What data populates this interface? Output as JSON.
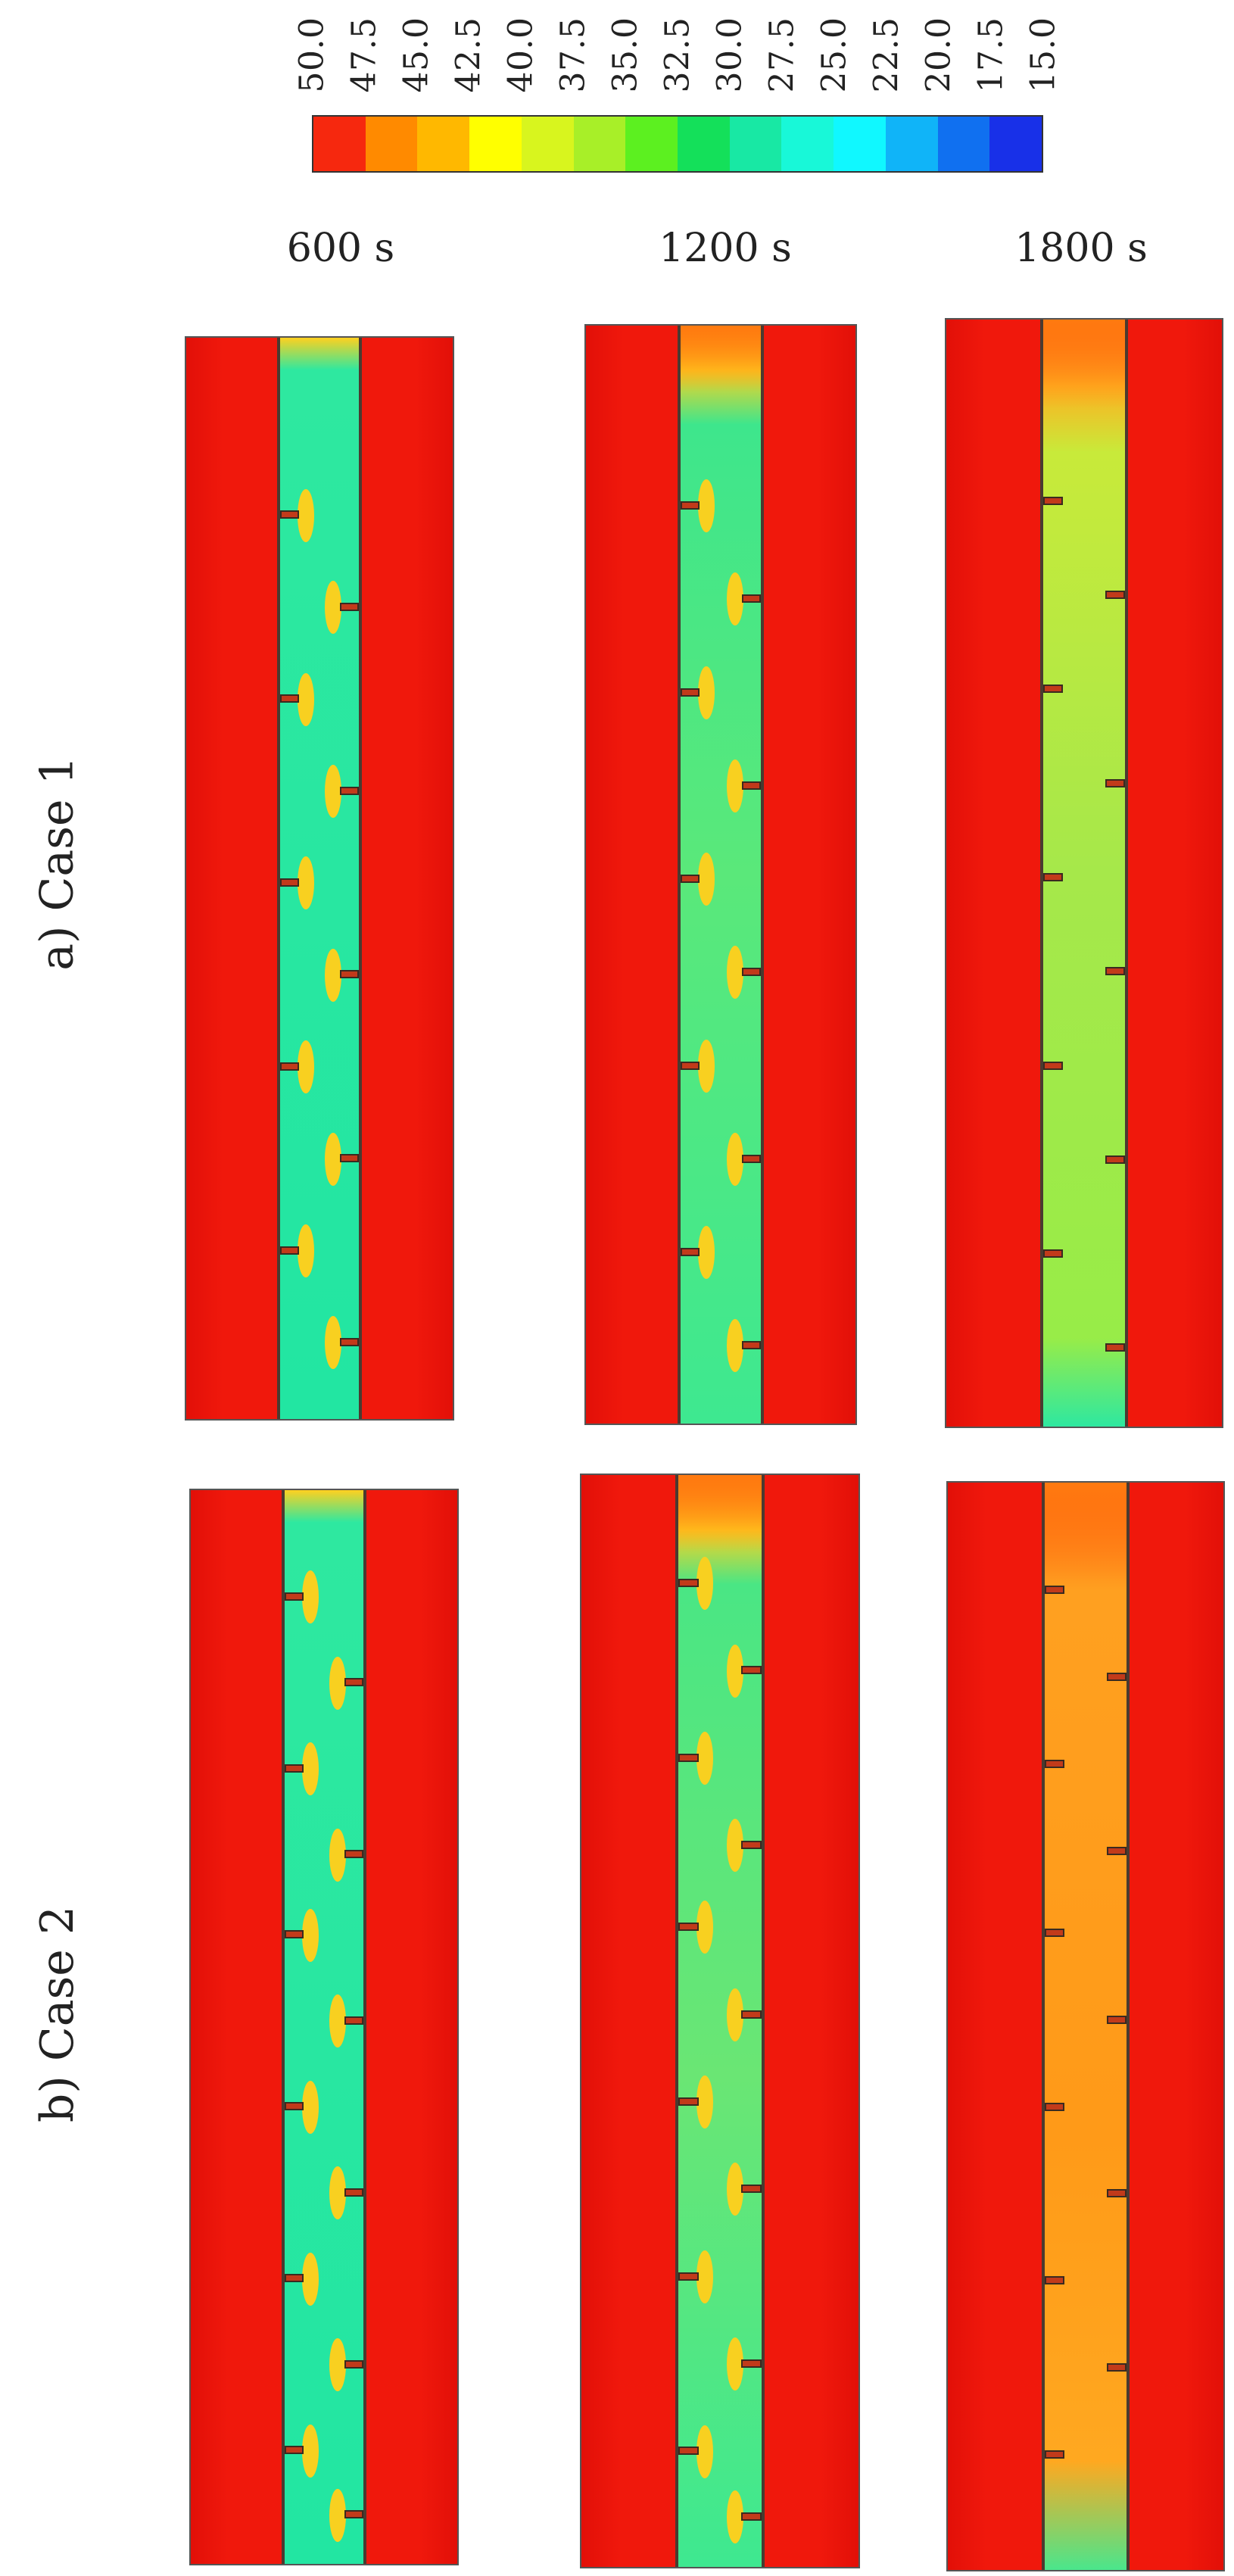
{
  "colorbar": {
    "labels": [
      "50.0",
      "47.5",
      "45.0",
      "42.5",
      "40.0",
      "37.5",
      "35.0",
      "32.5",
      "30.0",
      "27.5",
      "25.0",
      "22.5",
      "20.0",
      "17.5",
      "15.0"
    ],
    "colors": [
      "#f6280e",
      "#ff8a00",
      "#ffb800",
      "#ffff00",
      "#d8f51e",
      "#a8ef28",
      "#5cf020",
      "#14e05a",
      "#18e8a4",
      "#18f8d8",
      "#10f8ff",
      "#10b4f8",
      "#1070f0",
      "#1830e8"
    ]
  },
  "times": [
    "600 s",
    "1200 s",
    "1800 s"
  ],
  "rows": [
    {
      "label": "a)  Case 1"
    },
    {
      "label": "b)  Case 2"
    }
  ],
  "colors": {
    "hot": "#f0180c",
    "cold_fluid": "#1ee6a0",
    "warm_fluid": "#ff9a10",
    "mixed_fluid": "#9eeb3a",
    "interface": "#f8d020"
  }
}
